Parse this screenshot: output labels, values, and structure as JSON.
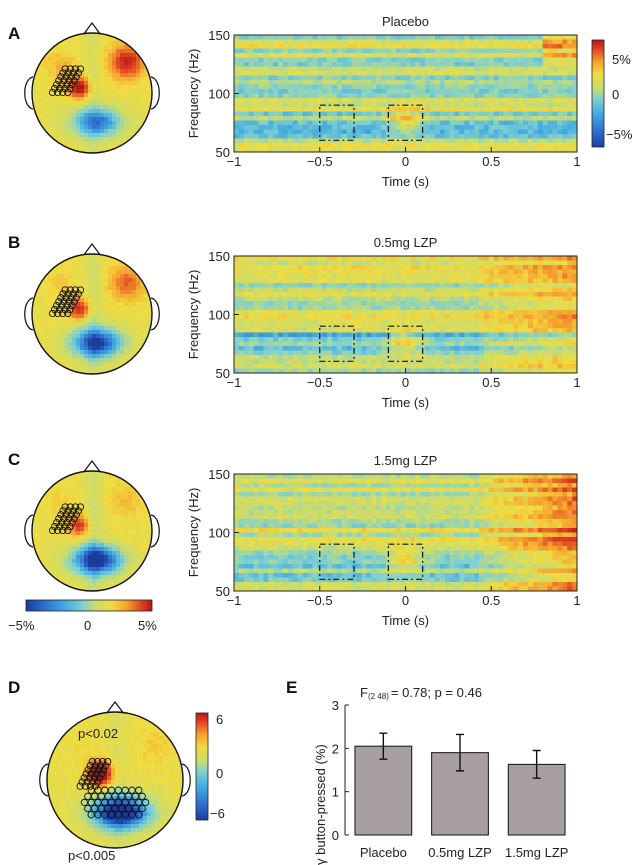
{
  "panel_letters": [
    "A",
    "B",
    "C",
    "D",
    "E"
  ],
  "colors": {
    "jet": [
      "#1c3c9c",
      "#2f6fd0",
      "#3fa8e0",
      "#7fd0d0",
      "#c8dc70",
      "#f0dc40",
      "#f5a030",
      "#e04020",
      "#b01818"
    ],
    "bar_fill": "#a8a0a0",
    "scalp_outline": "#111111",
    "electrode_outline": "#111111"
  },
  "spectrograms": [
    {
      "id": "A",
      "title": "Placebo",
      "xlabel": "Time (s)",
      "ylabel": "Frequency (Hz)",
      "xticks": [
        "−1",
        "−0.5",
        "0",
        "0.5",
        "1"
      ],
      "yticks": [
        "50",
        "100",
        "150"
      ],
      "xlim": [
        -1,
        1
      ],
      "ylim": [
        50,
        150
      ],
      "colorbar": {
        "ticks": [
          "5%",
          "0",
          "−5%"
        ]
      }
    },
    {
      "id": "B",
      "title": "0.5mg LZP",
      "xlabel": "Time (s)",
      "ylabel": "Frequency (Hz)",
      "xticks": [
        "−1",
        "−0.5",
        "0",
        "0.5",
        "1"
      ],
      "yticks": [
        "50",
        "100",
        "150"
      ],
      "xlim": [
        -1,
        1
      ],
      "ylim": [
        50,
        150
      ]
    },
    {
      "id": "C",
      "title": "1.5mg LZP",
      "xlabel": "Time (s)",
      "ylabel": "Frequency (Hz)",
      "xticks": [
        "−1",
        "−0.5",
        "0",
        "0.5",
        "1"
      ],
      "yticks": [
        "50",
        "100",
        "150"
      ],
      "xlim": [
        -1,
        1
      ],
      "ylim": [
        50,
        150
      ]
    }
  ],
  "topo_colorbar": {
    "ticks": [
      "−5%",
      "0",
      "5%"
    ]
  },
  "panel_d": {
    "annotation_top": "p<0.02",
    "annotation_bottom": "p<0.005",
    "colorbar": {
      "ticks": [
        "6",
        "0",
        "−6"
      ]
    }
  },
  "chart_data": [
    {
      "type": "bar",
      "title": "F(2 48) = 0.78; p = 0.46",
      "title_main": "F",
      "title_sub": "(2 48)",
      "title_rest": "= 0.78; p = 0.46",
      "ylabel": "γ button-pressed (%)",
      "categories": [
        "Placebo",
        "0.5mg LZP",
        "1.5mg LZP"
      ],
      "values": [
        2.05,
        1.9,
        1.63
      ],
      "errors": [
        0.3,
        0.42,
        0.32
      ],
      "ylim": [
        0,
        3
      ],
      "yticks": [
        "0",
        "1",
        "2",
        "3"
      ]
    }
  ]
}
